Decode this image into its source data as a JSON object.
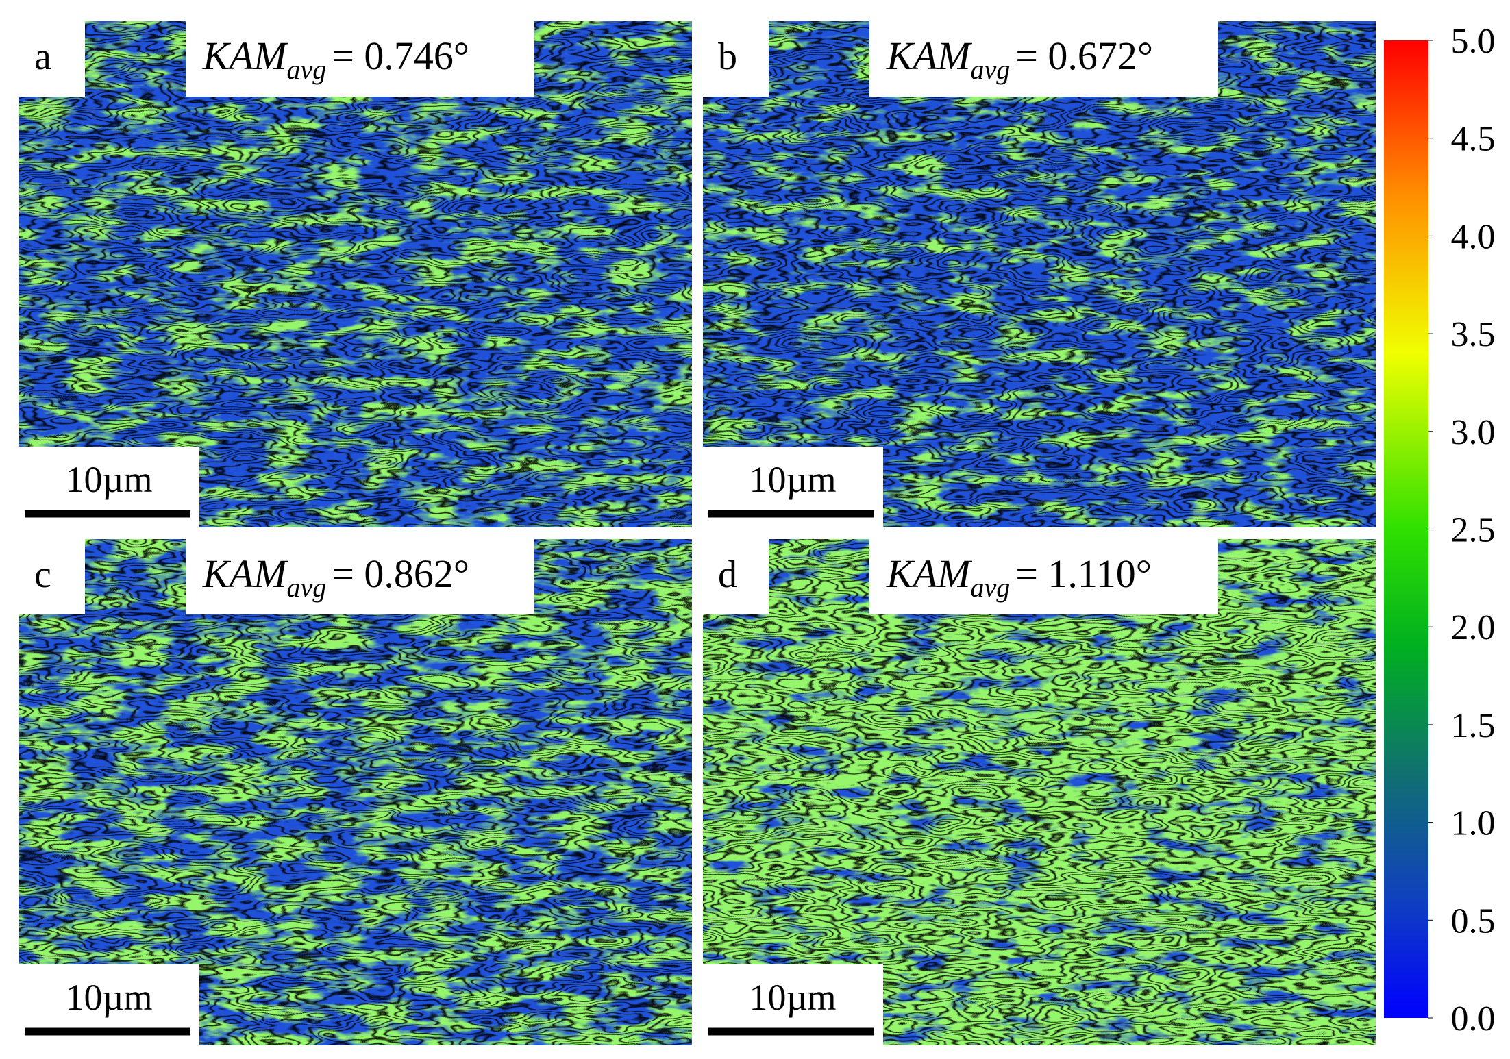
{
  "panels": [
    {
      "label": "a",
      "quantity": "KAM",
      "subscript": "avg",
      "value_text": "= 0.746°",
      "scale_bar": "10µm"
    },
    {
      "label": "b",
      "quantity": "KAM",
      "subscript": "avg",
      "value_text": "= 0.672°",
      "scale_bar": "10µm"
    },
    {
      "label": "c",
      "quantity": "KAM",
      "subscript": "avg",
      "value_text": "= 0.862°",
      "scale_bar": "10µm"
    },
    {
      "label": "d",
      "quantity": "KAM",
      "subscript": "avg",
      "value_text": "= 1.110°",
      "scale_bar": "10µm"
    }
  ],
  "colorbar": {
    "range": [
      0,
      5
    ],
    "ticks": [
      {
        "value": 0,
        "label": "0.0"
      },
      {
        "value": 0.5,
        "label": "0.5"
      },
      {
        "value": 1,
        "label": "1.0"
      },
      {
        "value": 1.5,
        "label": "1.5"
      },
      {
        "value": 2,
        "label": "2.0"
      },
      {
        "value": 2.5,
        "label": "2.5"
      },
      {
        "value": 3,
        "label": "3.0"
      },
      {
        "value": 3.5,
        "label": "3.5"
      },
      {
        "value": 4,
        "label": "4.0"
      },
      {
        "value": 4.5,
        "label": "4.5"
      },
      {
        "value": 5,
        "label": "5.0"
      }
    ]
  }
}
